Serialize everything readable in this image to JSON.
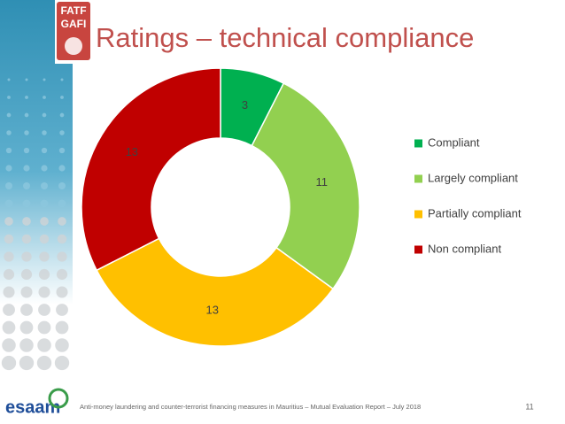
{
  "chart_data": {
    "type": "donut",
    "title": "Ratings – technical compliance",
    "categories": [
      "Compliant",
      "Largely compliant",
      "Partially compliant",
      "Non compliant"
    ],
    "values": [
      3,
      11,
      13,
      13
    ],
    "colors": [
      "#00b050",
      "#92d050",
      "#ffc000",
      "#c00000"
    ],
    "legend": "right"
  },
  "slide": {
    "logo_top": [
      "FATF",
      "GAFI"
    ],
    "logo_bottom": "esaam",
    "footer": "Anti-money laundering and counter-terrorist financing measures in Mauritius – Mutual Evaluation Report – July 2018",
    "page_number": 11
  }
}
